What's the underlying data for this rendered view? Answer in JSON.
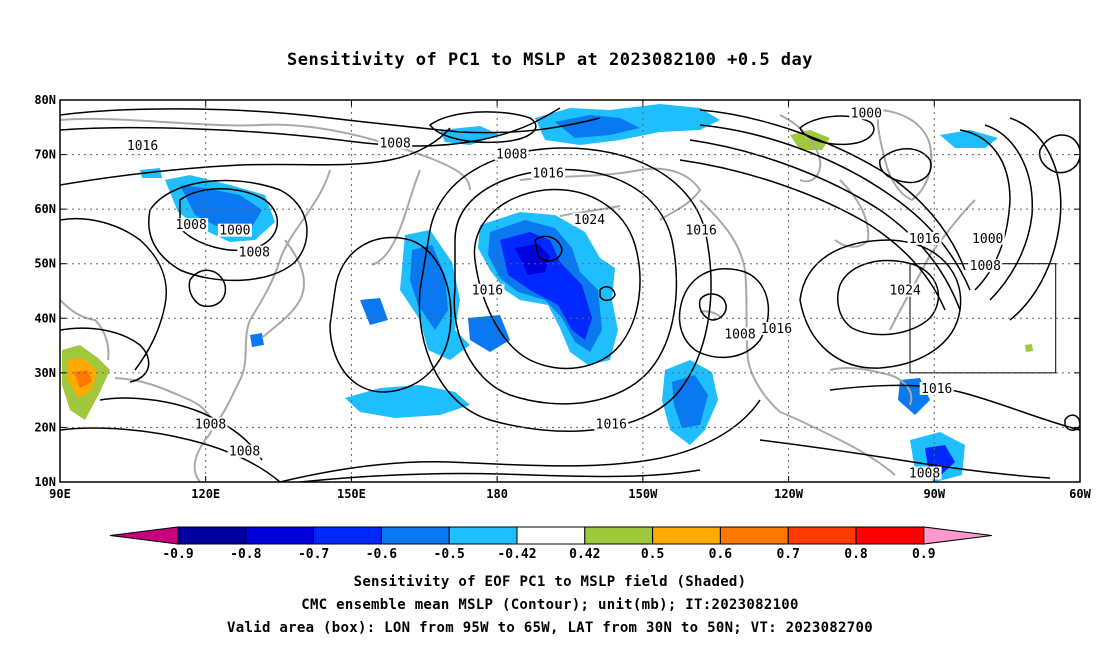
{
  "title": "Sensitivity of PC1 to MSLP at 2023082100 +0.5 day",
  "map": {
    "lon_labels": [
      "90E",
      "120E",
      "150E",
      "180",
      "150W",
      "120W",
      "90W",
      "60W"
    ],
    "lat_labels": [
      "80N",
      "70N",
      "60N",
      "50N",
      "40N",
      "30N",
      "20N",
      "10N"
    ],
    "lon_range": [
      90,
      300
    ],
    "lat_range": [
      10,
      80
    ],
    "grid": "dotted",
    "contour_labels": [
      {
        "text": "1016",
        "lon": 107,
        "lat": 71
      },
      {
        "text": "1008",
        "lon": 159,
        "lat": 71.5
      },
      {
        "text": "1008",
        "lon": 183,
        "lat": 69.5
      },
      {
        "text": "1016",
        "lon": 190.5,
        "lat": 66
      },
      {
        "text": "1008",
        "lon": 117,
        "lat": 56.5
      },
      {
        "text": "1000",
        "lon": 126,
        "lat": 55.5
      },
      {
        "text": "1008",
        "lon": 130,
        "lat": 51.5
      },
      {
        "text": "1024",
        "lon": 199,
        "lat": 57.5
      },
      {
        "text": "1016",
        "lon": 222,
        "lat": 55.5
      },
      {
        "text": "1016",
        "lon": 178,
        "lat": 44.5
      },
      {
        "text": "1016",
        "lon": 268,
        "lat": 54
      },
      {
        "text": "1000",
        "lon": 281,
        "lat": 54
      },
      {
        "text": "1008",
        "lon": 280.5,
        "lat": 49
      },
      {
        "text": "1024",
        "lon": 264,
        "lat": 44.5
      },
      {
        "text": "1008",
        "lon": 230,
        "lat": 36.5
      },
      {
        "text": "1016",
        "lon": 237.5,
        "lat": 37.5
      },
      {
        "text": "1016",
        "lon": 270.5,
        "lat": 26.5
      },
      {
        "text": "1008",
        "lon": 121,
        "lat": 20
      },
      {
        "text": "1008",
        "lon": 128,
        "lat": 15
      },
      {
        "text": "1016",
        "lon": 203.5,
        "lat": 20
      },
      {
        "text": "1008",
        "lon": 268,
        "lat": 11
      },
      {
        "text": "1000",
        "lon": 256,
        "lat": 77
      }
    ],
    "valid_box": {
      "lon_west": 265,
      "lon_east": 295,
      "lat_south": 30,
      "lat_north": 50
    }
  },
  "colorbar": {
    "labels": [
      "-0.9",
      "-0.8",
      "-0.7",
      "-0.6",
      "-0.5",
      "-0.42",
      "0.42",
      "0.5",
      "0.6",
      "0.7",
      "0.8",
      "0.9"
    ],
    "colors": [
      "#c8007d",
      "#0000a0",
      "#0000dc",
      "#0028ff",
      "#0a78f0",
      "#1ebeff",
      "#ffffff",
      "#a0c83c",
      "#ffaa00",
      "#ff7800",
      "#ff3c00",
      "#ff0000",
      "#ff99cc"
    ]
  },
  "footer": {
    "line1": "Sensitivity of EOF PC1 to MSLP field (Shaded)",
    "line2": "CMC ensemble mean MSLP (Contour); unit(mb); IT:2023082100",
    "line3": "Valid area (box): LON from 95W to 65W, LAT from 30N to 50N; VT: 2023082700"
  }
}
